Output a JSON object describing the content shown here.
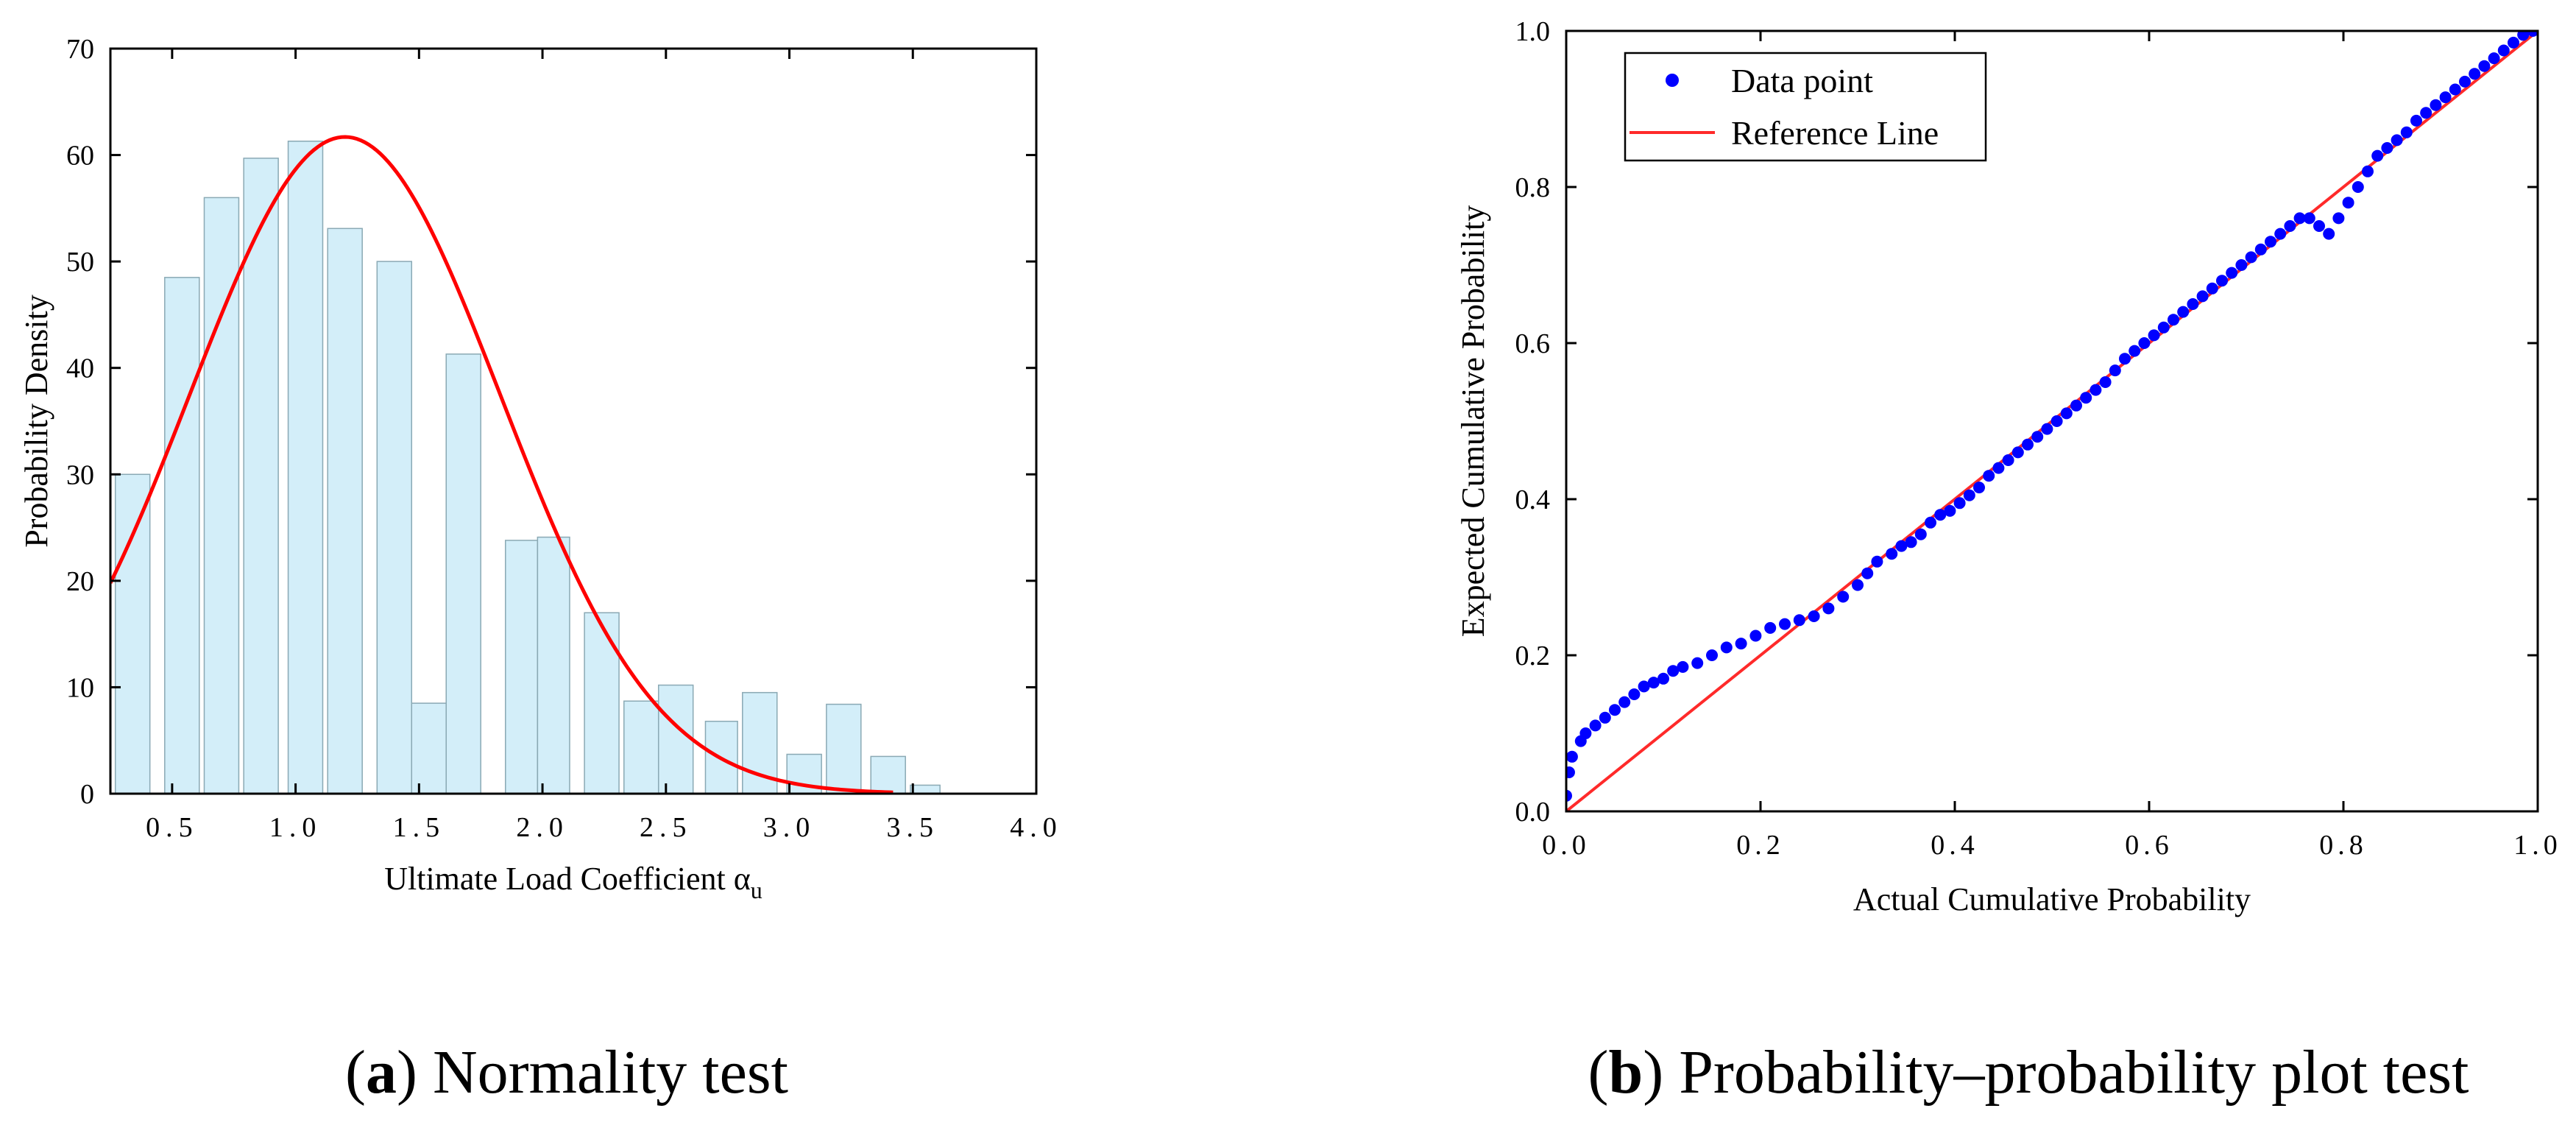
{
  "chart_data": [
    {
      "type": "bar",
      "subtype": "histogram-with-fitted-curve",
      "caption_label": "a",
      "caption_text": " Normality test",
      "xlabel": "Ultimate Load Coefficient α",
      "xlabel_subscript": "u",
      "ylabel": "Probability Density",
      "xlim": [
        0.25,
        4.0
      ],
      "ylim": [
        0,
        70
      ],
      "xticks": [
        0.5,
        1.0,
        1.5,
        2.0,
        2.5,
        3.0,
        3.5,
        4.0
      ],
      "xtick_labels": [
        "0.5",
        "1.0",
        "1.5",
        "2.0",
        "2.5",
        "3.0",
        "3.5",
        "4.0"
      ],
      "yticks": [
        0,
        10,
        20,
        30,
        40,
        50,
        60,
        70
      ],
      "ytick_labels": [
        "0",
        "10",
        "20",
        "30",
        "40",
        "50",
        "60",
        "70"
      ],
      "bar_color": "#d3eef9",
      "bar_edge_color": "#8aa9b4",
      "curve_color": "#ff0000",
      "bars": [
        {
          "x0": 0.27,
          "x1": 0.41,
          "value": 30.0
        },
        {
          "x0": 0.47,
          "x1": 0.61,
          "value": 48.5
        },
        {
          "x0": 0.63,
          "x1": 0.77,
          "value": 56.0
        },
        {
          "x0": 0.79,
          "x1": 0.93,
          "value": 59.7
        },
        {
          "x0": 0.97,
          "x1": 1.11,
          "value": 61.3
        },
        {
          "x0": 1.13,
          "x1": 1.27,
          "value": 53.1
        },
        {
          "x0": 1.33,
          "x1": 1.47,
          "value": 50.0
        },
        {
          "x0": 1.47,
          "x1": 1.61,
          "value": 8.5
        },
        {
          "x0": 1.61,
          "x1": 1.75,
          "value": 41.3
        },
        {
          "x0": 1.85,
          "x1": 1.98,
          "value": 23.8
        },
        {
          "x0": 1.98,
          "x1": 2.11,
          "value": 24.1
        },
        {
          "x0": 2.17,
          "x1": 2.31,
          "value": 17.0
        },
        {
          "x0": 2.33,
          "x1": 2.47,
          "value": 8.7
        },
        {
          "x0": 2.47,
          "x1": 2.61,
          "value": 10.2
        },
        {
          "x0": 2.66,
          "x1": 2.79,
          "value": 6.8
        },
        {
          "x0": 2.81,
          "x1": 2.95,
          "value": 9.5
        },
        {
          "x0": 2.99,
          "x1": 3.13,
          "value": 3.7
        },
        {
          "x0": 3.15,
          "x1": 3.29,
          "value": 8.4
        },
        {
          "x0": 3.33,
          "x1": 3.47,
          "value": 3.5
        },
        {
          "x0": 3.49,
          "x1": 3.61,
          "value": 0.8
        }
      ],
      "fit_curve": {
        "distribution": "normal (scaled)",
        "peak_x": 1.2,
        "peak_y": 61.7,
        "sigma": 0.63,
        "x_range": [
          0.25,
          3.42
        ]
      }
    },
    {
      "type": "scatter",
      "subtype": "probability-probability plot",
      "caption_label": "b",
      "caption_text": " Probability–probability plot test",
      "xlabel": "Actual Cumulative Probability",
      "ylabel": "Expected Cumulative Probability",
      "xlim": [
        0.0,
        1.0
      ],
      "ylim": [
        0.0,
        1.0
      ],
      "xticks": [
        0.0,
        0.2,
        0.4,
        0.6,
        0.8,
        1.0
      ],
      "xtick_labels": [
        "0.0",
        "0.2",
        "0.4",
        "0.6",
        "0.8",
        "1.0"
      ],
      "yticks": [
        0.0,
        0.2,
        0.4,
        0.6,
        0.8,
        1.0
      ],
      "ytick_labels": [
        "0.0",
        "0.2",
        "0.4",
        "0.6",
        "0.8",
        "1.0"
      ],
      "legend_position": "top-left",
      "legend": [
        {
          "label": "Data point",
          "marker": "dot",
          "color": "#0000ff"
        },
        {
          "label": "Reference Line",
          "marker": "line",
          "color": "#ff2a2a"
        }
      ],
      "reference_line": {
        "x": [
          0.0,
          1.0
        ],
        "y": [
          0.0,
          1.0
        ]
      },
      "points": [
        [
          0.0,
          0.02
        ],
        [
          0.003,
          0.05
        ],
        [
          0.006,
          0.07
        ],
        [
          0.015,
          0.09
        ],
        [
          0.02,
          0.1
        ],
        [
          0.03,
          0.11
        ],
        [
          0.04,
          0.12
        ],
        [
          0.05,
          0.13
        ],
        [
          0.06,
          0.14
        ],
        [
          0.07,
          0.15
        ],
        [
          0.08,
          0.16
        ],
        [
          0.09,
          0.165
        ],
        [
          0.1,
          0.17
        ],
        [
          0.11,
          0.18
        ],
        [
          0.12,
          0.185
        ],
        [
          0.135,
          0.19
        ],
        [
          0.15,
          0.2
        ],
        [
          0.165,
          0.21
        ],
        [
          0.18,
          0.215
        ],
        [
          0.195,
          0.225
        ],
        [
          0.21,
          0.235
        ],
        [
          0.225,
          0.24
        ],
        [
          0.24,
          0.245
        ],
        [
          0.255,
          0.25
        ],
        [
          0.27,
          0.26
        ],
        [
          0.285,
          0.275
        ],
        [
          0.3,
          0.29
        ],
        [
          0.31,
          0.305
        ],
        [
          0.32,
          0.32
        ],
        [
          0.335,
          0.33
        ],
        [
          0.345,
          0.34
        ],
        [
          0.355,
          0.345
        ],
        [
          0.365,
          0.355
        ],
        [
          0.375,
          0.37
        ],
        [
          0.385,
          0.38
        ],
        [
          0.395,
          0.385
        ],
        [
          0.405,
          0.395
        ],
        [
          0.415,
          0.405
        ],
        [
          0.425,
          0.415
        ],
        [
          0.435,
          0.43
        ],
        [
          0.445,
          0.44
        ],
        [
          0.455,
          0.45
        ],
        [
          0.465,
          0.46
        ],
        [
          0.475,
          0.47
        ],
        [
          0.485,
          0.48
        ],
        [
          0.495,
          0.49
        ],
        [
          0.505,
          0.5
        ],
        [
          0.515,
          0.51
        ],
        [
          0.525,
          0.52
        ],
        [
          0.535,
          0.53
        ],
        [
          0.545,
          0.54
        ],
        [
          0.555,
          0.55
        ],
        [
          0.565,
          0.565
        ],
        [
          0.575,
          0.58
        ],
        [
          0.585,
          0.59
        ],
        [
          0.595,
          0.6
        ],
        [
          0.605,
          0.61
        ],
        [
          0.615,
          0.62
        ],
        [
          0.625,
          0.63
        ],
        [
          0.635,
          0.64
        ],
        [
          0.645,
          0.65
        ],
        [
          0.655,
          0.66
        ],
        [
          0.665,
          0.67
        ],
        [
          0.675,
          0.68
        ],
        [
          0.685,
          0.69
        ],
        [
          0.695,
          0.7
        ],
        [
          0.705,
          0.71
        ],
        [
          0.715,
          0.72
        ],
        [
          0.725,
          0.73
        ],
        [
          0.735,
          0.74
        ],
        [
          0.745,
          0.75
        ],
        [
          0.755,
          0.76
        ],
        [
          0.765,
          0.76
        ],
        [
          0.775,
          0.75
        ],
        [
          0.785,
          0.74
        ],
        [
          0.795,
          0.76
        ],
        [
          0.805,
          0.78
        ],
        [
          0.815,
          0.8
        ],
        [
          0.825,
          0.82
        ],
        [
          0.835,
          0.84
        ],
        [
          0.845,
          0.85
        ],
        [
          0.855,
          0.86
        ],
        [
          0.865,
          0.87
        ],
        [
          0.875,
          0.885
        ],
        [
          0.885,
          0.895
        ],
        [
          0.895,
          0.905
        ],
        [
          0.905,
          0.915
        ],
        [
          0.915,
          0.925
        ],
        [
          0.925,
          0.935
        ],
        [
          0.935,
          0.945
        ],
        [
          0.945,
          0.955
        ],
        [
          0.955,
          0.965
        ],
        [
          0.965,
          0.975
        ],
        [
          0.975,
          0.985
        ],
        [
          0.985,
          0.995
        ],
        [
          0.995,
          1.0
        ]
      ]
    }
  ]
}
